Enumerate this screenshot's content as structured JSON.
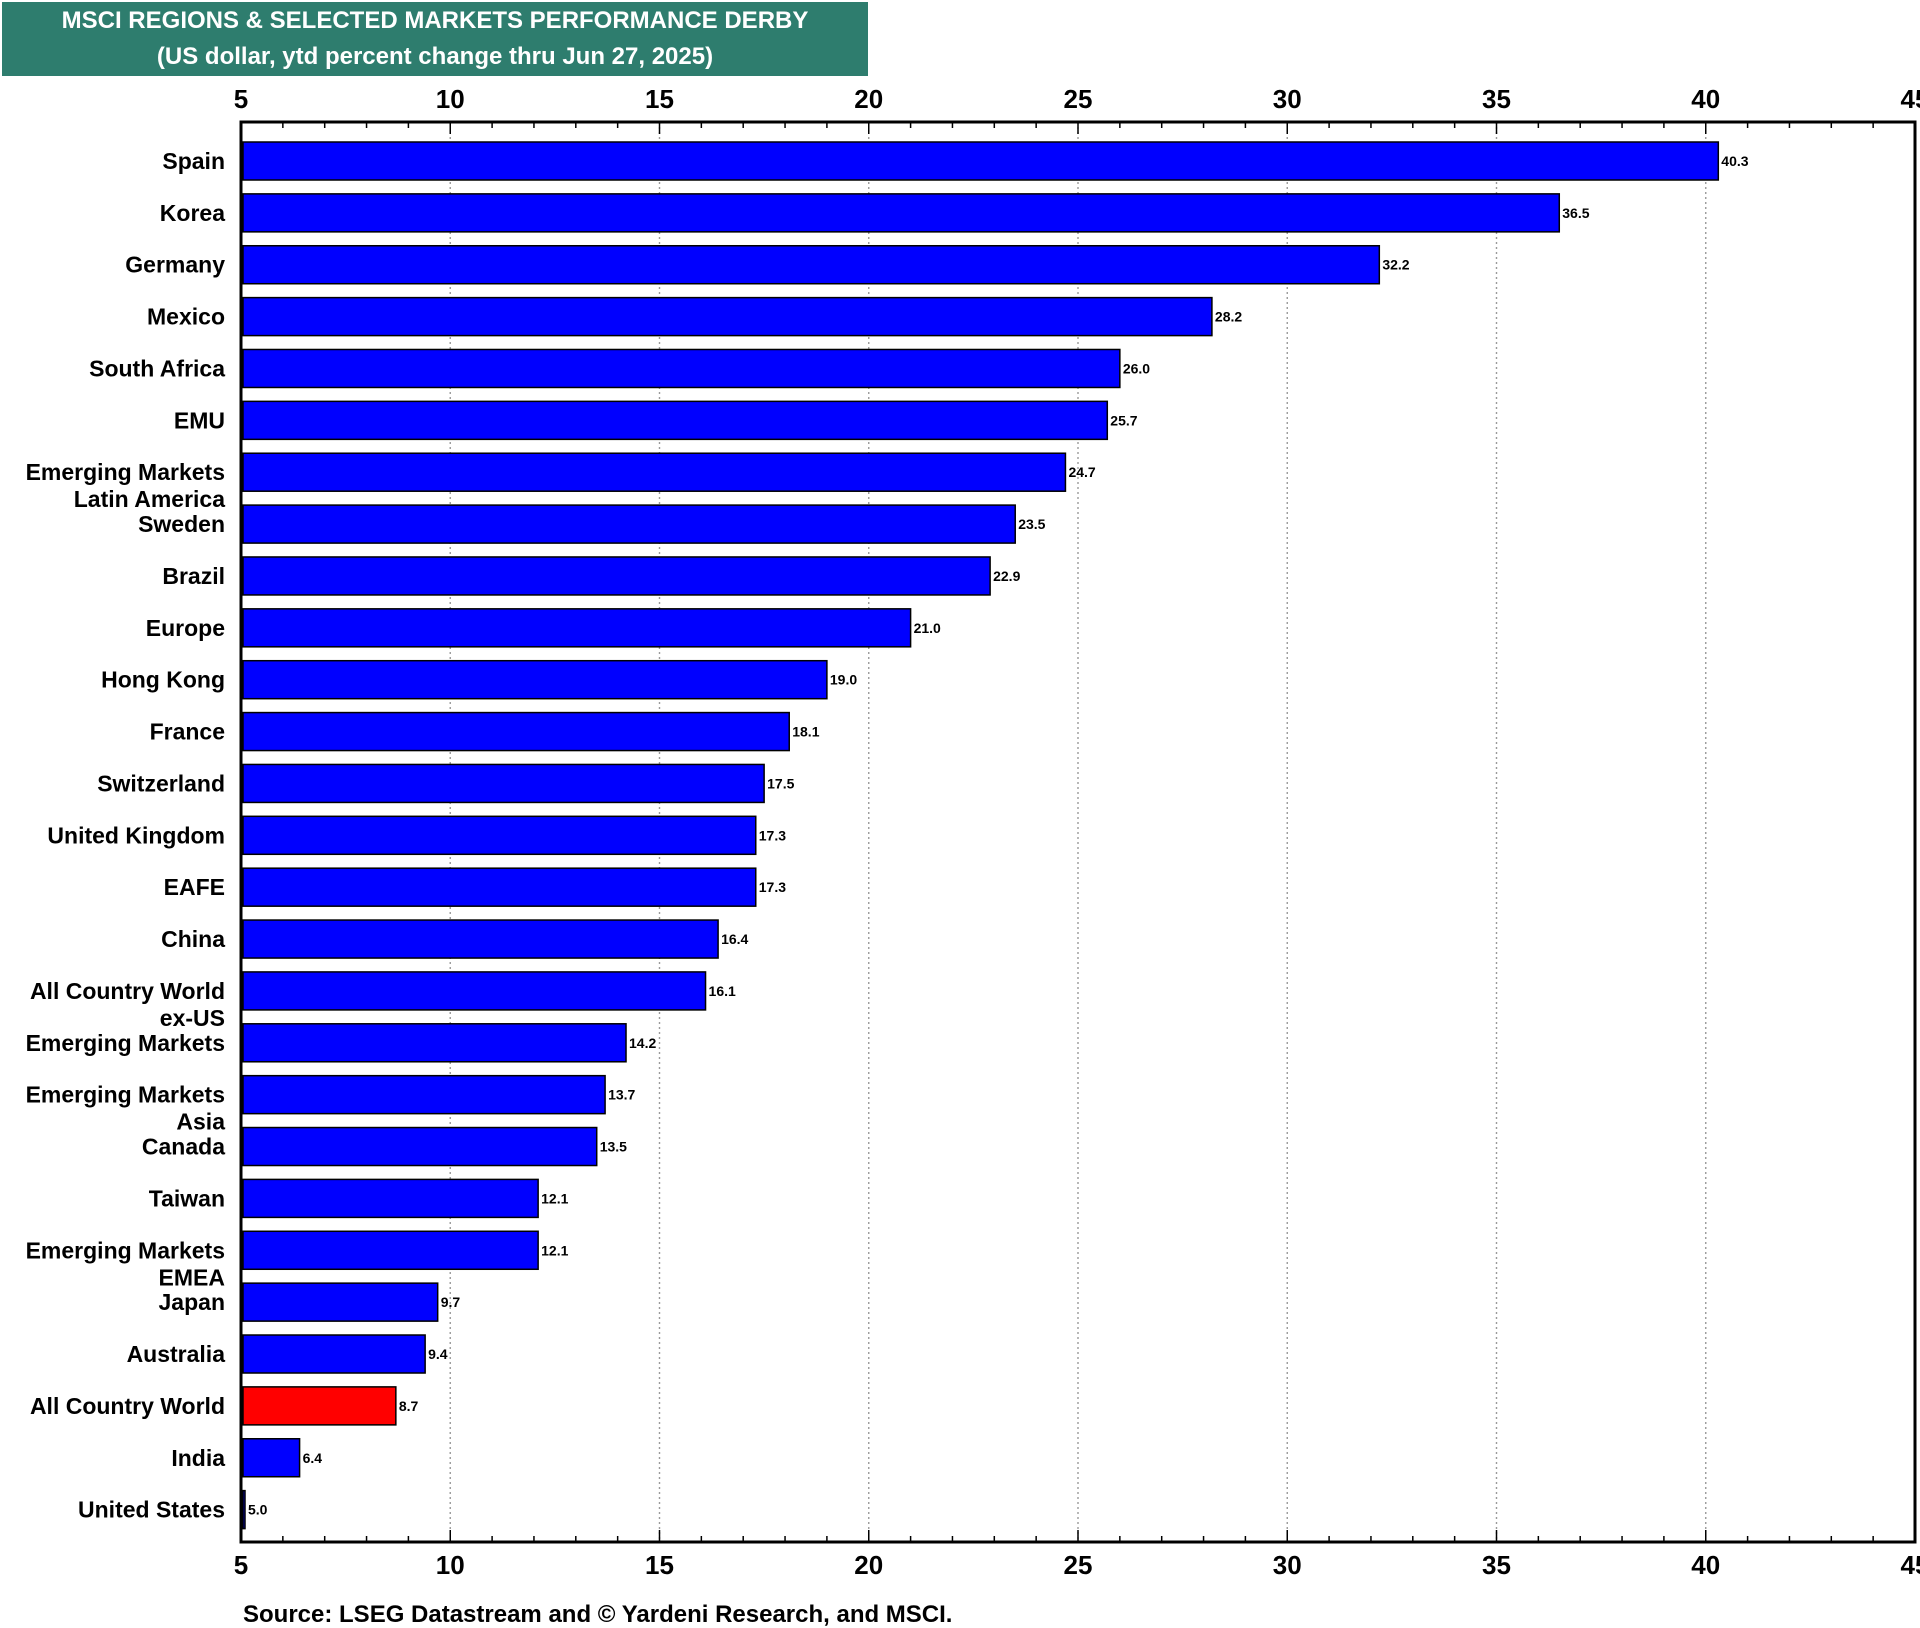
{
  "title": "MSCI REGIONS & SELECTED MARKETS PERFORMANCE DERBY",
  "subtitle": "(US dollar, ytd percent change thru Jun 27, 2025)",
  "source": "Source: LSEG Datastream and © Yardeni Research, and MSCI.",
  "colors": {
    "title_background": "#2e7d6e",
    "bar": "#0000ff",
    "highlight_bar": "#ff0000"
  },
  "chart_data": {
    "type": "bar",
    "orientation": "horizontal",
    "title": "MSCI REGIONS & SELECTED MARKETS PERFORMANCE DERBY",
    "subtitle": "(US dollar, ytd percent change thru Jun 27, 2025)",
    "xlim": [
      5,
      45
    ],
    "ticks": [
      5,
      10,
      15,
      20,
      25,
      30,
      35,
      40,
      45
    ],
    "tick_labels": [
      "5",
      "10",
      "15",
      "20",
      "25",
      "30",
      "35",
      "40",
      "45"
    ],
    "grid": true,
    "axes_labels_position": "top and bottom",
    "categories": [
      [
        "Spain"
      ],
      [
        "Korea"
      ],
      [
        "Germany"
      ],
      [
        "Mexico"
      ],
      [
        "South Africa"
      ],
      [
        "EMU"
      ],
      [
        "Emerging Markets",
        "Latin America"
      ],
      [
        "Sweden"
      ],
      [
        "Brazil"
      ],
      [
        "Europe"
      ],
      [
        "Hong Kong"
      ],
      [
        "France"
      ],
      [
        "Switzerland"
      ],
      [
        "United Kingdom"
      ],
      [
        "EAFE"
      ],
      [
        "China"
      ],
      [
        "All Country World",
        "ex-US"
      ],
      [
        "Emerging Markets"
      ],
      [
        "Emerging Markets",
        "Asia"
      ],
      [
        "Canada"
      ],
      [
        "Taiwan"
      ],
      [
        "Emerging Markets",
        "EMEA"
      ],
      [
        "Japan"
      ],
      [
        "Australia"
      ],
      [
        "All Country World"
      ],
      [
        "India"
      ],
      [
        "United States"
      ]
    ],
    "values": [
      40.3,
      36.5,
      32.2,
      28.2,
      26.0,
      25.7,
      24.7,
      23.5,
      22.9,
      21.0,
      19.0,
      18.1,
      17.5,
      17.3,
      17.3,
      16.4,
      16.1,
      14.2,
      13.7,
      13.5,
      12.1,
      12.1,
      9.7,
      9.4,
      8.7,
      6.4,
      5.0
    ],
    "value_labels": [
      "40.3",
      "36.5",
      "32.2",
      "28.2",
      "26.0",
      "25.7",
      "24.7",
      "23.5",
      "22.9",
      "21.0",
      "19.0",
      "18.1",
      "17.5",
      "17.3",
      "17.3",
      "16.4",
      "16.1",
      "14.2",
      "13.7",
      "13.5",
      "12.1",
      "12.1",
      "9.7",
      "9.4",
      "8.7",
      "6.4",
      "5.0"
    ],
    "highlight": [
      "All Country World"
    ]
  }
}
